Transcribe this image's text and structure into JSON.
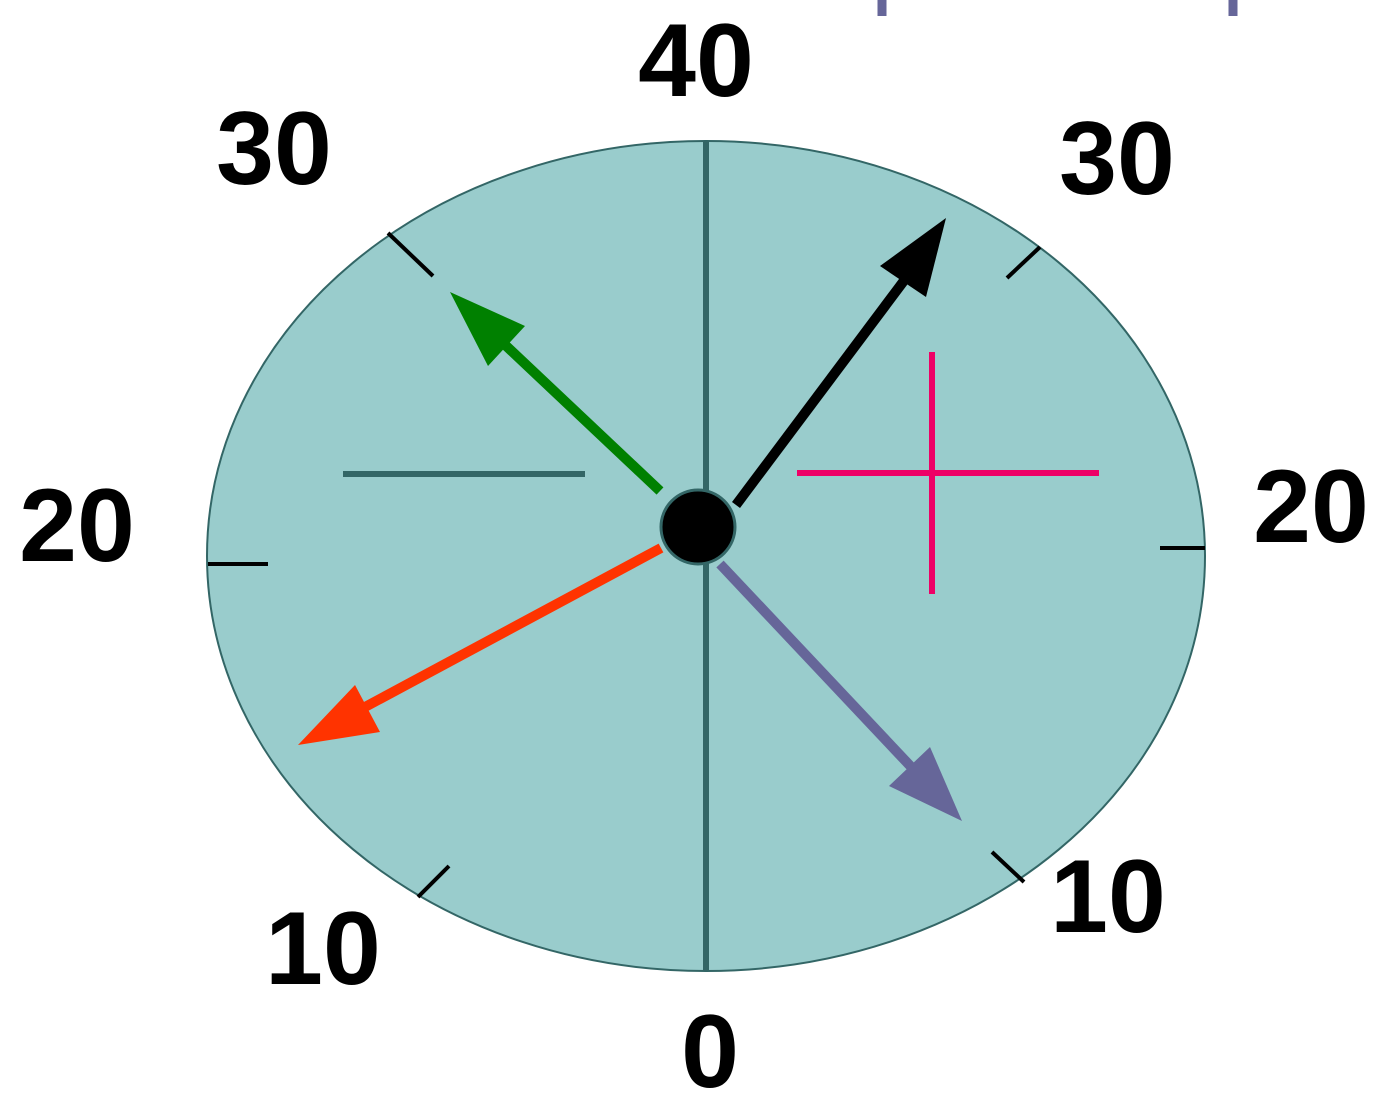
{
  "scale_labels": {
    "top": "40",
    "upper_left": "30",
    "upper_right": "30",
    "left": "20",
    "right": "20",
    "lower_left": "10",
    "lower_right": "10",
    "bottom": "0"
  },
  "colors": {
    "background": "#ffffff",
    "dial_fill": "#99cccc",
    "dial_stroke": "#336666",
    "divider": "#336666",
    "tick": "#000000",
    "hub": "#000000",
    "arrow_black": "#000000",
    "arrow_green": "#008000",
    "arrow_red": "#ff3300",
    "arrow_purple": "#666699",
    "plus_sign": "#ee0066",
    "minus_sign": "#336666",
    "top_marks": "#666699"
  },
  "arrows": [
    {
      "id": "black",
      "color": "#000000"
    },
    {
      "id": "green",
      "color": "#008000"
    },
    {
      "id": "red",
      "color": "#ff3300"
    },
    {
      "id": "purple",
      "color": "#666699"
    }
  ],
  "signs": {
    "left": "minus",
    "right": "plus"
  }
}
